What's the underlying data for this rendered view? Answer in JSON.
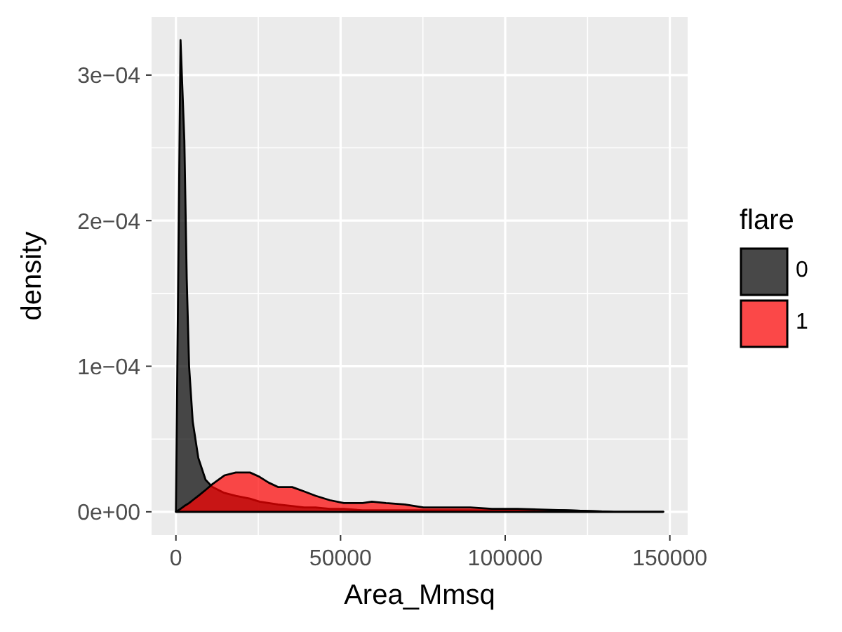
{
  "chart_data": {
    "type": "area",
    "xlabel": "Area_Mmsq",
    "ylabel": "density",
    "legend_title": "flare",
    "x": [
      0,
      1400,
      2560,
      3280,
      4000,
      5100,
      6800,
      9000,
      11100,
      14700,
      18200,
      22500,
      25400,
      28200,
      31000,
      35300,
      38900,
      42400,
      46700,
      51000,
      56700,
      59500,
      63800,
      69500,
      75200,
      82300,
      89400,
      96000,
      103700,
      117900,
      133000,
      148000
    ],
    "series": [
      {
        "name": "0",
        "color": "#000000",
        "values": [
          0,
          0.000324,
          0.000255,
          0.00016,
          0.0001,
          6.2e-05,
          3.7e-05,
          2.2e-05,
          1.7e-05,
          1.3e-05,
          1.1e-05,
          9e-06,
          7e-06,
          6e-06,
          5e-06,
          4e-06,
          3e-06,
          3e-06,
          2e-06,
          2e-06,
          1e-06,
          1e-06,
          1e-06,
          1e-06,
          1e-06,
          1e-06,
          1e-06,
          1e-06,
          1e-06,
          1e-06,
          0,
          0
        ]
      },
      {
        "name": "1",
        "color": "#ff0000",
        "values": [
          0,
          2e-06,
          4e-06,
          5e-06,
          6e-06,
          8e-06,
          1.1e-05,
          1.5e-05,
          1.9e-05,
          2.5e-05,
          2.7e-05,
          2.7e-05,
          2.4e-05,
          2e-05,
          1.7e-05,
          1.7e-05,
          1.4e-05,
          1.1e-05,
          8e-06,
          6e-06,
          6e-06,
          7e-06,
          6e-06,
          5e-06,
          3e-06,
          3e-06,
          3e-06,
          2e-06,
          2e-06,
          1e-06,
          0,
          0
        ]
      }
    ],
    "xlim": [
      -7400,
      155400
    ],
    "xticks": [
      0,
      50000,
      100000,
      150000
    ],
    "ylim": [
      -1.6e-05,
      0.00034
    ],
    "yticks": [
      {
        "value": 0,
        "label": "0e+00"
      },
      {
        "value": 0.0001,
        "label": "1e−04"
      },
      {
        "value": 0.0002,
        "label": "2e−04"
      },
      {
        "value": 0.0003,
        "label": "3e−04"
      }
    ],
    "grid": true,
    "legend": "right"
  }
}
